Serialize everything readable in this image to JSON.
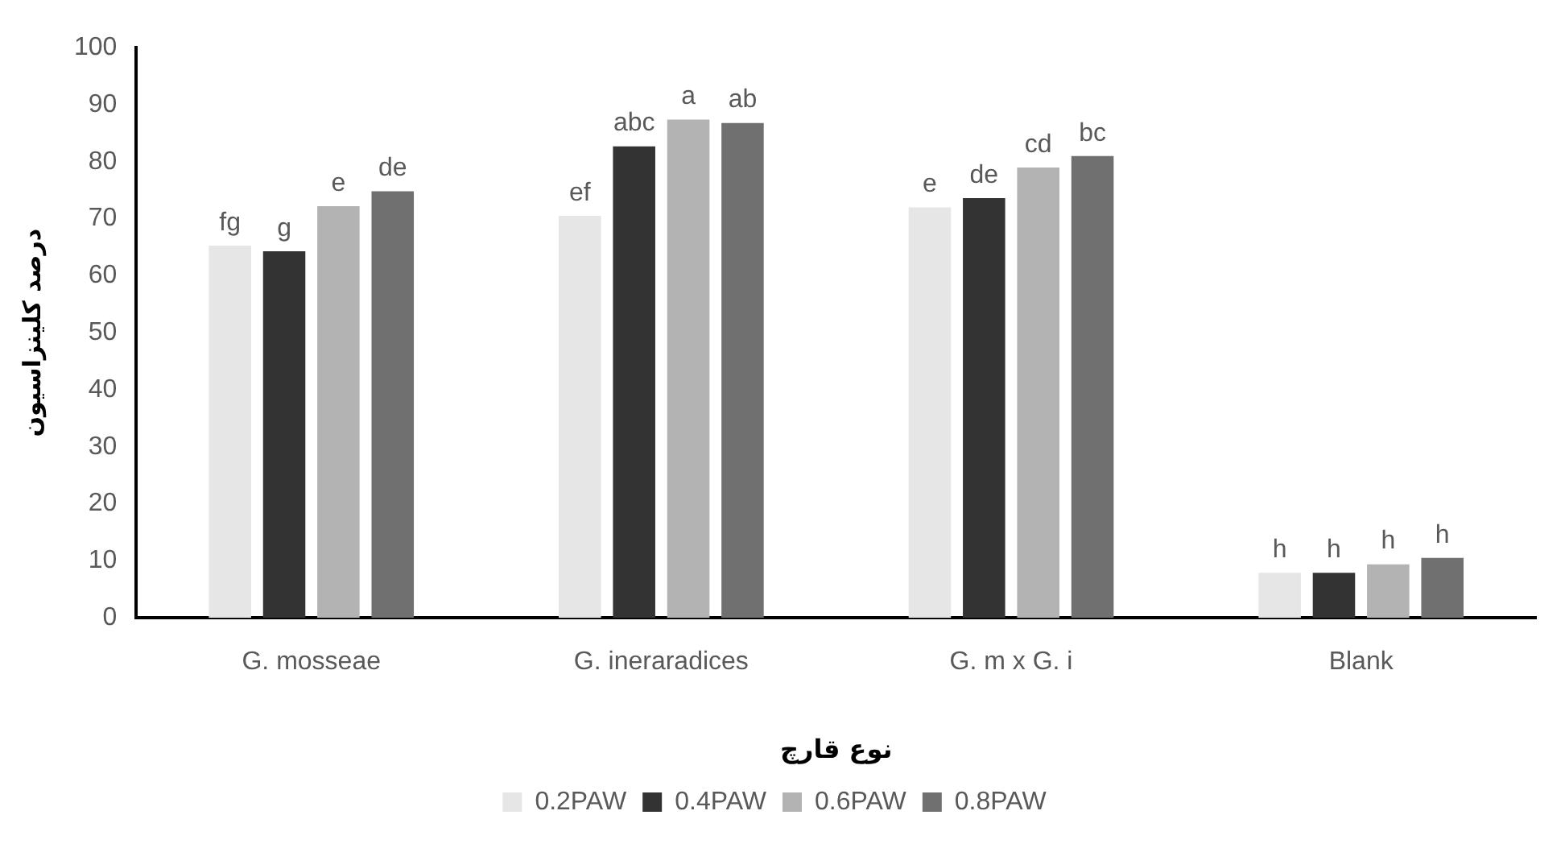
{
  "chart_data": {
    "type": "bar",
    "xlabel": "نوع قارچ",
    "ylabel": "درصد کلینزاسیون",
    "categories": [
      "G. mosseae",
      "G. ineraradices",
      "G. m x G. i",
      "Blank"
    ],
    "series": [
      {
        "name": "0.2PAW",
        "color": "#e6e6e6",
        "values": [
          65.3,
          70.5,
          72.0,
          7.9
        ],
        "value_labels": [
          "fg",
          "ef",
          "e",
          "h"
        ]
      },
      {
        "name": "0.4PAW",
        "color": "#333333",
        "values": [
          64.3,
          82.7,
          73.6,
          7.9
        ],
        "value_labels": [
          "g",
          "abc",
          "de",
          "h"
        ]
      },
      {
        "name": "0.6PAW",
        "color": "#b3b3b3",
        "values": [
          72.2,
          87.4,
          79.0,
          9.4
        ],
        "value_labels": [
          "e",
          "a",
          "cd",
          "h"
        ]
      },
      {
        "name": "0.8PAW",
        "color": "#707070",
        "values": [
          74.8,
          86.8,
          81.0,
          10.5
        ],
        "value_labels": [
          "de",
          "ab",
          "bc",
          "h"
        ]
      }
    ],
    "ylim": [
      0,
      100
    ],
    "yticks": [
      0,
      10,
      20,
      30,
      40,
      50,
      60,
      70,
      80,
      90,
      100
    ],
    "grid": false,
    "legend": "bottom"
  }
}
